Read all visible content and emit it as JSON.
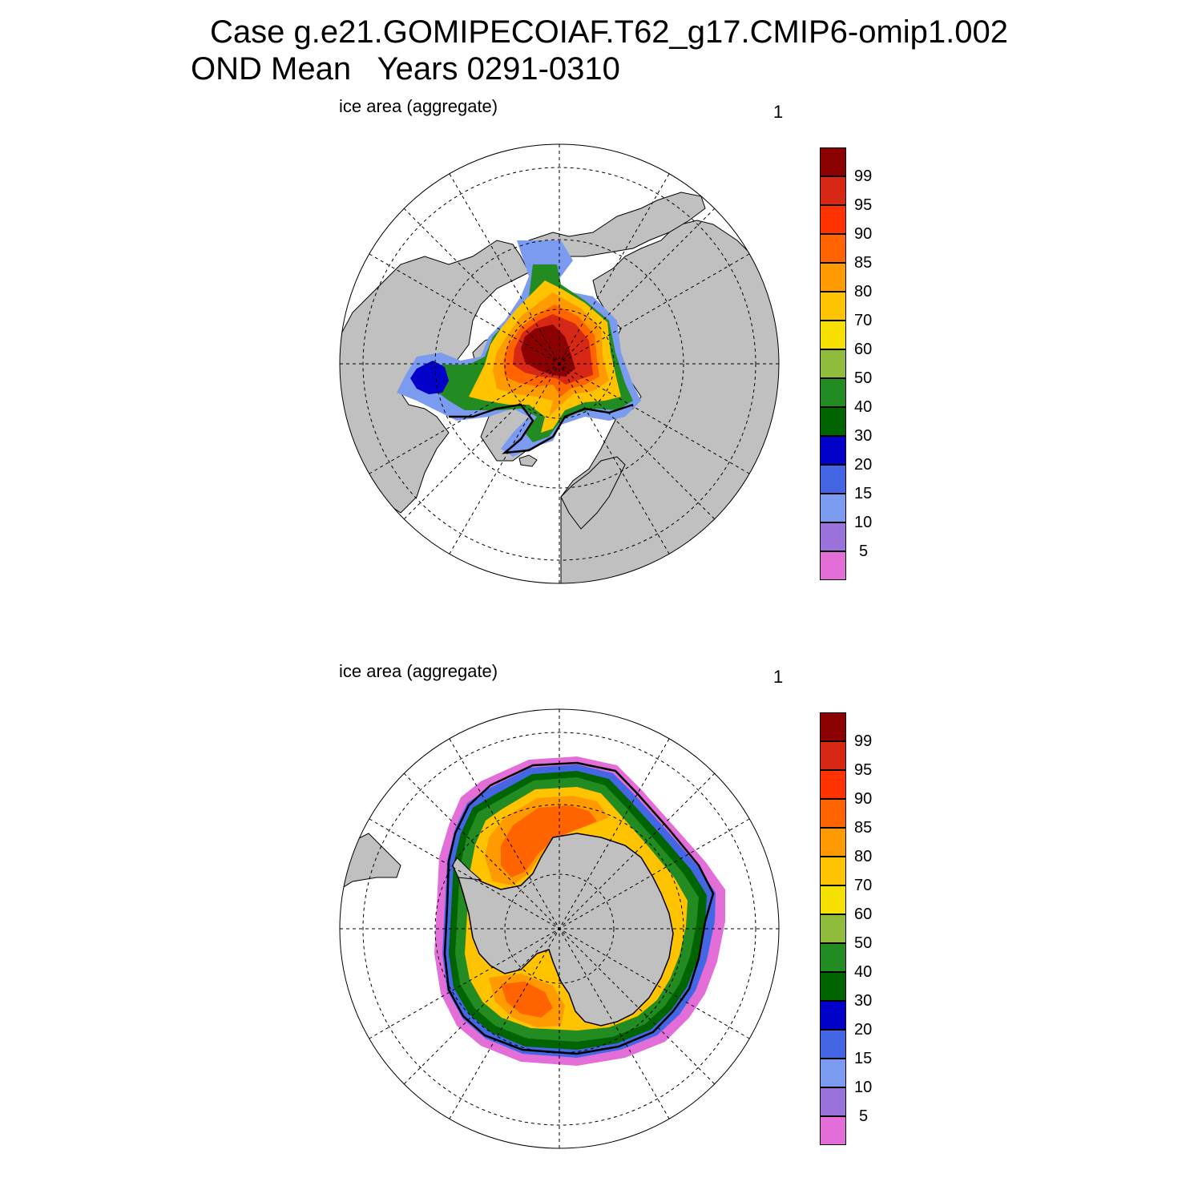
{
  "header": {
    "title_line1": "Case g.e21.GOMIPECOIAF.T62_g17.CMIP6-omip1.002",
    "title_line2": "OND Mean   Years 0291-0310"
  },
  "panels": [
    {
      "id": "north",
      "left_label": "ice area  (aggregate)",
      "right_label": "1"
    },
    {
      "id": "south",
      "left_label": "ice area  (aggregate)",
      "right_label": "1"
    }
  ],
  "colorbar": {
    "levels": [
      "5",
      "10",
      "15",
      "20",
      "30",
      "40",
      "50",
      "60",
      "70",
      "80",
      "85",
      "90",
      "95",
      "99"
    ],
    "colors": [
      "#e46ed8",
      "#9b72dc",
      "#7a9bf0",
      "#4366e4",
      "#0000c8",
      "#006400",
      "#228b22",
      "#8fbc3a",
      "#f5e000",
      "#ffc300",
      "#ff9a00",
      "#ff6400",
      "#ff3200",
      "#d62814",
      "#8b0000"
    ]
  },
  "map_colors": {
    "land": "#c0c0c0",
    "ocean": "#ffffff",
    "grid": "#000000",
    "ice_edge": "#000000"
  }
}
